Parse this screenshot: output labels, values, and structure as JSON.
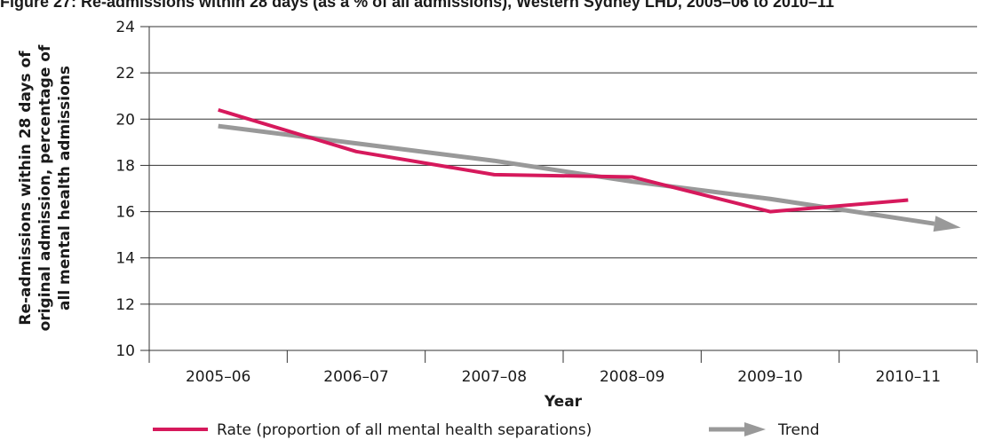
{
  "header": {
    "clipped_title": "Figure 27: Re-admissions within 28 days (as a % of all admissions), Western Sydney LHD, 2005–06 to 2010–11"
  },
  "chart_data": {
    "type": "line",
    "title": "",
    "xlabel": "Year",
    "ylabel": [
      "Re-admissions within 28 days of",
      "original admission, percentage of",
      "all mental health admissions"
    ],
    "categories": [
      "2005–06",
      "2006–07",
      "2007–08",
      "2008–09",
      "2009–10",
      "2010–11"
    ],
    "ylim": [
      10,
      24
    ],
    "yticks": [
      10,
      12,
      14,
      16,
      18,
      20,
      22,
      24
    ],
    "grid": true,
    "legend_position": "bottom",
    "series": [
      {
        "name": "Rate (proportion of all mental health separations)",
        "color": "#d6195c",
        "values": [
          20.4,
          18.6,
          17.6,
          17.5,
          16.0,
          16.5
        ]
      },
      {
        "name": "Trend",
        "color": "#999999",
        "style": "arrow",
        "values": [
          19.7,
          18.95,
          18.2,
          17.3,
          16.55,
          15.65
        ]
      }
    ]
  }
}
